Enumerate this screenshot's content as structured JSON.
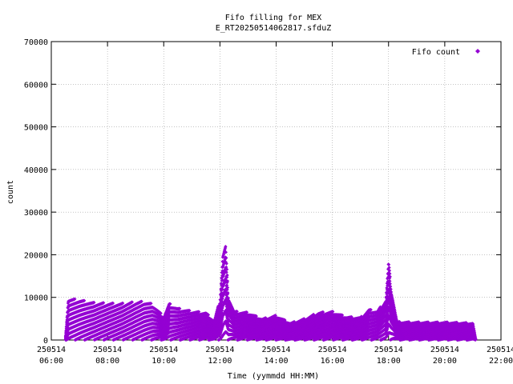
{
  "chart_data": {
    "type": "scatter",
    "title": "Fifo filling for MEX",
    "subtitle": "E_RT20250514062817.sfduZ",
    "xlabel": "Time (yymmdd HH:MM)",
    "ylabel": "count",
    "x_unit": "hours of day 2025-05-14",
    "xlim": [
      6,
      22
    ],
    "ylim": [
      0,
      70000
    ],
    "x_ticks": [
      {
        "value": 6,
        "date": "250514",
        "time": "06:00"
      },
      {
        "value": 8,
        "date": "250514",
        "time": "08:00"
      },
      {
        "value": 10,
        "date": "250514",
        "time": "10:00"
      },
      {
        "value": 12,
        "date": "250514",
        "time": "12:00"
      },
      {
        "value": 14,
        "date": "250514",
        "time": "14:00"
      },
      {
        "value": 16,
        "date": "250514",
        "time": "16:00"
      },
      {
        "value": 18,
        "date": "250514",
        "time": "18:00"
      },
      {
        "value": 20,
        "date": "250514",
        "time": "20:00"
      },
      {
        "value": 22,
        "date": "250514",
        "time": "22:00"
      }
    ],
    "y_ticks": [
      0,
      10000,
      20000,
      30000,
      40000,
      50000,
      60000,
      70000
    ],
    "grid": true,
    "legend_position": "top-right",
    "color": "#9400d3",
    "series": [
      {
        "name": "Fifo count",
        "envelope_note": "sawtooth fill cycles; values are the approximate peak envelope (hour, max count)",
        "peaks": [
          [
            6.5,
            0
          ],
          [
            6.6,
            9800
          ],
          [
            7.0,
            9500
          ],
          [
            7.5,
            8800
          ],
          [
            8.0,
            8700
          ],
          [
            8.5,
            8600
          ],
          [
            9.0,
            9000
          ],
          [
            9.3,
            9100
          ],
          [
            9.6,
            8500
          ],
          [
            10.0,
            5500
          ],
          [
            10.2,
            8600
          ],
          [
            10.5,
            7500
          ],
          [
            11.0,
            6800
          ],
          [
            11.5,
            6500
          ],
          [
            11.8,
            4500
          ],
          [
            12.0,
            9500
          ],
          [
            12.1,
            20500
          ],
          [
            12.2,
            22500
          ],
          [
            12.3,
            10500
          ],
          [
            12.5,
            6800
          ],
          [
            13.0,
            6500
          ],
          [
            13.5,
            5000
          ],
          [
            14.0,
            5800
          ],
          [
            14.5,
            4000
          ],
          [
            15.0,
            5000
          ],
          [
            15.5,
            6500
          ],
          [
            16.0,
            6700
          ],
          [
            16.5,
            5500
          ],
          [
            17.0,
            5300
          ],
          [
            17.3,
            7200
          ],
          [
            17.6,
            6800
          ],
          [
            17.9,
            9500
          ],
          [
            18.0,
            18500
          ],
          [
            18.1,
            12000
          ],
          [
            18.3,
            4300
          ],
          [
            19.0,
            4200
          ],
          [
            20.0,
            4200
          ],
          [
            20.5,
            4100
          ],
          [
            21.0,
            4000
          ],
          [
            21.1,
            0
          ]
        ]
      }
    ]
  }
}
